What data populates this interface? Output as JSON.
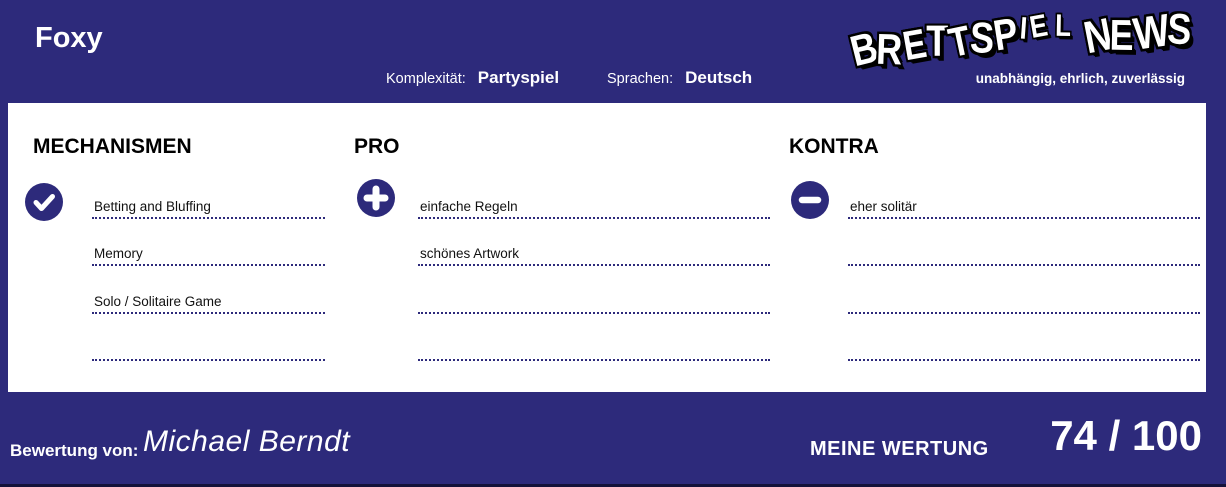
{
  "header": {
    "title": "Foxy",
    "complexity_label": "Komplexität:",
    "complexity_value": "Partyspiel",
    "languages_label": "Sprachen:",
    "languages_value": "Deutsch",
    "logo": {
      "text": "BRETTSPIEL NEWS",
      "tagline": "unabhängig, ehrlich, zuverlässig"
    }
  },
  "columns": [
    {
      "heading": "MECHANISMEN",
      "icon": "check-icon",
      "items": [
        "Betting and Bluffing",
        "Memory",
        "Solo / Solitaire Game",
        ""
      ]
    },
    {
      "heading": "PRO",
      "icon": "plus-icon",
      "items": [
        "einfache Regeln",
        "schönes Artwork",
        "",
        ""
      ]
    },
    {
      "heading": "KONTRA",
      "icon": "minus-icon",
      "items": [
        "eher solitär",
        "",
        "",
        ""
      ]
    }
  ],
  "footer": {
    "review_by_label": "Bewertung von:",
    "reviewer_name": "Michael Berndt",
    "rating_label": "MEINE WERTUNG",
    "rating_value": "74 / 100"
  },
  "colors": {
    "primary_blue": "#2d2a7b",
    "panel_white": "#ffffff",
    "heading_black": "#000000",
    "text_white": "#ffffff"
  }
}
